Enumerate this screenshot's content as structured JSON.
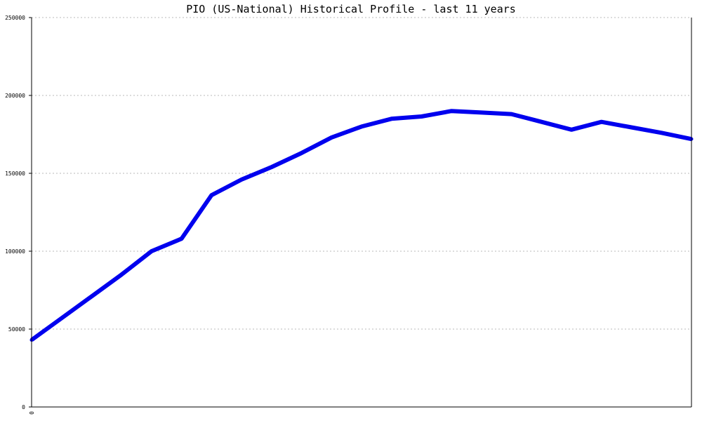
{
  "chart_data": {
    "type": "line",
    "title": "PIO (US-National) Historical Profile - last 11 years",
    "xlabel": "",
    "ylabel": "",
    "ylim": [
      0,
      250000
    ],
    "yticks": [
      0,
      50000,
      100000,
      150000,
      200000,
      250000
    ],
    "ytick_labels": [
      "0",
      "50000",
      "100000",
      "150000",
      "200000",
      "250000"
    ],
    "xtick_labels": [
      "0"
    ],
    "grid": true,
    "series_color": "#0000ee",
    "series": [
      {
        "x": [
          0,
          1,
          2,
          3,
          4,
          5,
          6,
          7,
          8,
          9,
          10,
          11,
          12,
          13,
          14,
          15,
          16,
          17,
          18,
          19,
          20,
          21,
          22
        ],
        "values": [
          43000,
          57000,
          71000,
          85000,
          100000,
          108000,
          136000,
          146000,
          154000,
          163000,
          173000,
          180000,
          185000,
          186500,
          190000,
          189000,
          188000,
          183000,
          178000,
          183000,
          179500,
          176000,
          172000
        ]
      }
    ]
  }
}
